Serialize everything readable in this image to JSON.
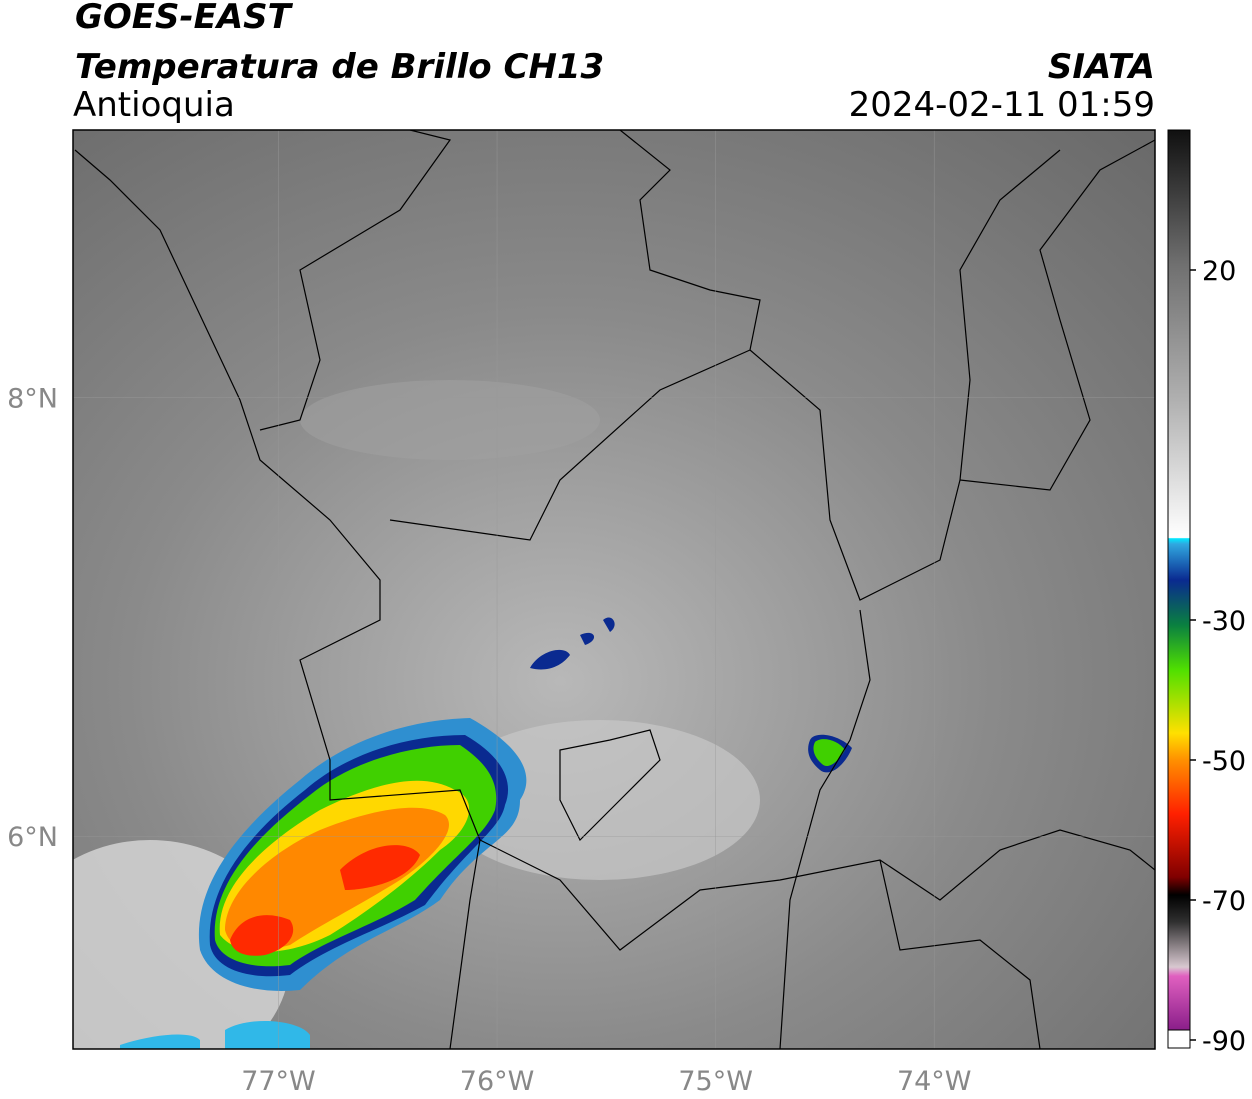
{
  "header": {
    "title": "GOES-EAST",
    "subtitle": "Temperatura de Brillo CH13",
    "region": "Antioquia",
    "source": "SIATA",
    "datetime": "2024-02-11 01:59"
  },
  "map": {
    "xlim": [
      -77.94,
      -72.99
    ],
    "ylim": [
      5.03,
      9.22
    ],
    "xticks": [
      {
        "value": -77,
        "label": "77°W"
      },
      {
        "value": -76,
        "label": "76°W"
      },
      {
        "value": -75,
        "label": "75°W"
      },
      {
        "value": -74,
        "label": "74°W"
      }
    ],
    "yticks": [
      {
        "value": 8,
        "label": "8°N"
      },
      {
        "value": 6,
        "label": "6°N"
      }
    ],
    "grid": true
  },
  "colorbar": {
    "ylim": [
      -90,
      40
    ],
    "yticks": [
      20,
      -30,
      -50,
      -70,
      -90
    ]
  }
}
